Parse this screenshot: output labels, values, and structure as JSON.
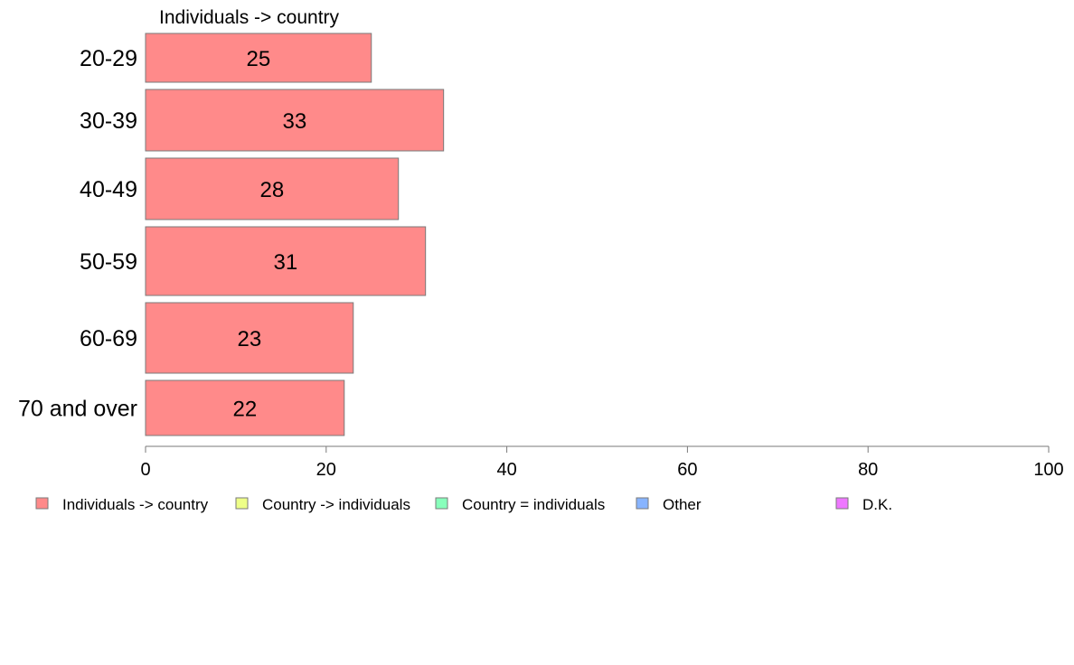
{
  "chart_data": {
    "type": "bar",
    "orientation": "horizontal",
    "stacked": true,
    "series_title": "Individuals -> country",
    "categories": [
      "20-29",
      "30-39",
      "40-49",
      "50-59",
      "60-69",
      "70 and over"
    ],
    "series": [
      {
        "name": "Individuals -> country",
        "color": "#ff8a8a",
        "values": [
          25,
          33,
          28,
          31,
          23,
          22
        ]
      },
      {
        "name": "Country -> individuals",
        "color": "#eeff88",
        "values": [
          0,
          0,
          0,
          0,
          0,
          0
        ]
      },
      {
        "name": "Country = individuals",
        "color": "#88ffbb",
        "values": [
          0,
          0,
          0,
          0,
          0,
          0
        ]
      },
      {
        "name": "Other",
        "color": "#88b4ff",
        "values": [
          0,
          0,
          0,
          0,
          0,
          0
        ]
      },
      {
        "name": "D.K.",
        "color": "#ee77ff",
        "values": [
          0,
          0,
          0,
          0,
          0,
          0
        ]
      }
    ],
    "data_labels": [
      "25",
      "33",
      "28",
      "31",
      "23",
      "22"
    ],
    "xlim": [
      0,
      100
    ],
    "xticks": [
      "0",
      "20",
      "40",
      "60",
      "80",
      "100"
    ],
    "xlabel": "",
    "ylabel": "",
    "grid": false,
    "legend_position": "bottom"
  }
}
